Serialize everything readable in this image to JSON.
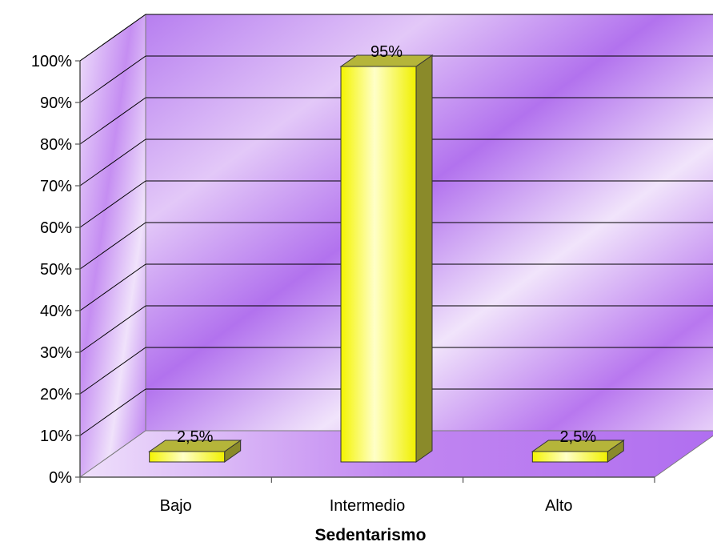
{
  "chart_data": {
    "type": "bar",
    "style": "3d-column",
    "categories": [
      "Bajo",
      "Intermedio",
      "Alto"
    ],
    "values": [
      2.5,
      95,
      2.5
    ],
    "value_labels": [
      "2,5%",
      "95%",
      "2,5%"
    ],
    "title": "",
    "xlabel": "Sedentarismo",
    "ylabel": "",
    "ylim": [
      0,
      100
    ],
    "yticks": [
      0,
      10,
      20,
      30,
      40,
      50,
      60,
      70,
      80,
      90,
      100
    ],
    "ytick_labels": [
      "0%",
      "10%",
      "20%",
      "30%",
      "40%",
      "50%",
      "60%",
      "70%",
      "80%",
      "90%",
      "100%"
    ],
    "grid": true,
    "legend": "none",
    "colors": {
      "bar_front": "#ffff33",
      "bar_top": "#b5b53a",
      "bar_side": "#8a8a2a",
      "wall_dark": "#b06ef0",
      "wall_light": "#f3e6fb",
      "floor": "#c48cf0",
      "gridline": "#000000"
    }
  }
}
